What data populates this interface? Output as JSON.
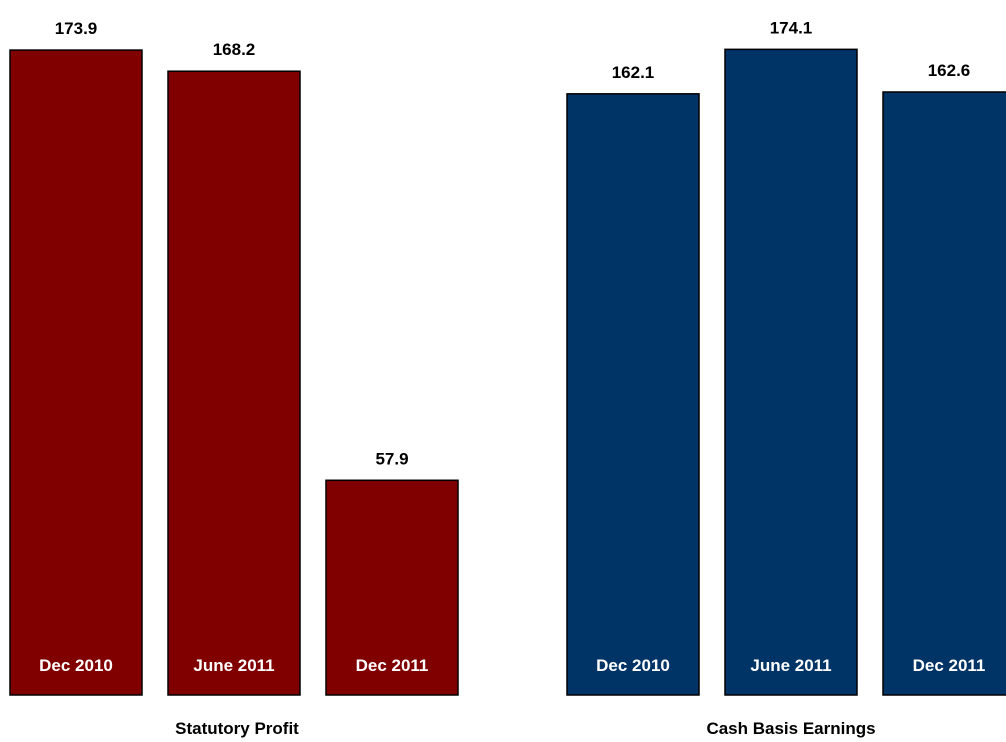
{
  "colors": {
    "statutory": "#800000",
    "cash": "#003366"
  },
  "chart_data": [
    {
      "type": "bar",
      "title": "Statutory Profit",
      "categories": [
        "Dec 2010",
        "June 2011",
        "Dec 2011"
      ],
      "values": [
        173.9,
        168.2,
        57.9
      ],
      "value_labels": [
        "173.9",
        "168.2",
        "57.9"
      ],
      "xlabel": "",
      "ylabel": "",
      "ylim": [
        0,
        175
      ],
      "grid": false,
      "legend": "none"
    },
    {
      "type": "bar",
      "title": "Cash Basis Earnings",
      "categories": [
        "Dec 2010",
        "June 2011",
        "Dec 2011"
      ],
      "values": [
        162.1,
        174.1,
        162.6
      ],
      "value_labels": [
        "162.1",
        "174.1",
        "162.6"
      ],
      "xlabel": "",
      "ylabel": "",
      "ylim": [
        0,
        175
      ],
      "grid": false,
      "legend": "none"
    }
  ]
}
